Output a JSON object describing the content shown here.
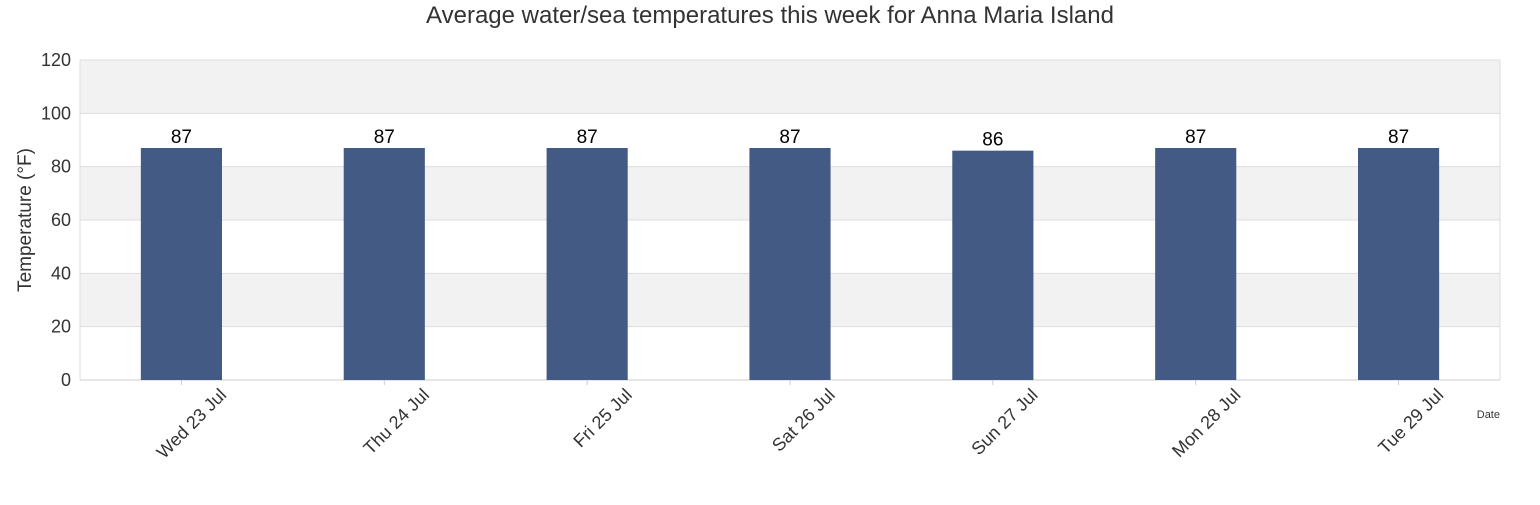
{
  "chart_data": {
    "type": "bar",
    "title": "Average water/sea temperatures this week for Anna Maria Island",
    "xlabel": "Date",
    "ylabel": "Temperature (°F)",
    "categories": [
      "Wed 23 Jul",
      "Thu 24 Jul",
      "Fri 25 Jul",
      "Sat 26 Jul",
      "Sun 27 Jul",
      "Mon 28 Jul",
      "Tue 29 Jul"
    ],
    "values": [
      87,
      87,
      87,
      87,
      86,
      87,
      87
    ],
    "data_labels": [
      "87",
      "87",
      "87",
      "87",
      "86",
      "87",
      "87"
    ],
    "ylim": [
      0,
      120
    ],
    "yticks": [
      0,
      20,
      40,
      60,
      80,
      100,
      120
    ],
    "ytick_labels": [
      "0",
      "20",
      "40",
      "60",
      "80",
      "100",
      "120"
    ],
    "grid": true,
    "legend": "none",
    "colors": {
      "bar": "#435b84",
      "band": "#f2f2f2",
      "gridline": "#dddddd",
      "axis": "#cccccc",
      "text": "#333333",
      "label": "#000000"
    }
  }
}
